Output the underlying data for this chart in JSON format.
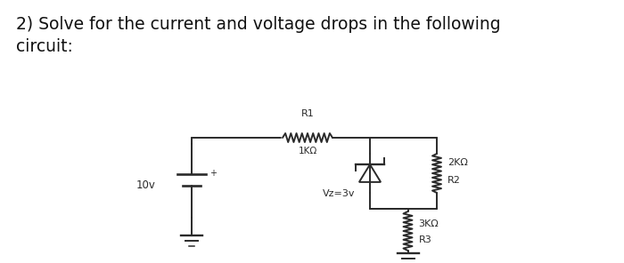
{
  "title_text": "2) Solve for the current and voltage drops in the following\ncircuit:",
  "title_fontsize": 13.5,
  "bg_color": "#ffffff",
  "fig_width": 7.0,
  "fig_height": 2.96,
  "dpi": 100,
  "circuit": {
    "battery_label": "10v",
    "r1_label": "R1",
    "r1_sub": "1KΩ",
    "r2_label": "2KΩ",
    "r2_sub": "R2",
    "r3_label": "3KΩ",
    "r3_sub": "R3",
    "vz_label": "Vz=3v"
  }
}
